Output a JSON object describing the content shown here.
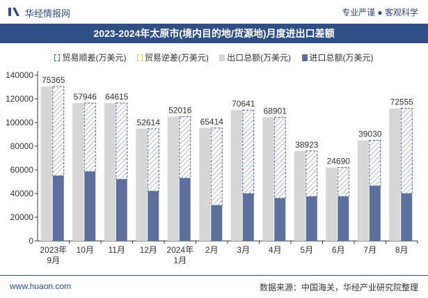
{
  "header": {
    "brand": "华经情报网",
    "slogan": "专业严谨 ● 客观科学"
  },
  "title": "2023-2024年太原市(境内目的地/货源地)月度进出口差额",
  "legend": [
    {
      "key": "surplus",
      "label": "贸易顺差(万美元)"
    },
    {
      "key": "deficit",
      "label": "贸易逆差(万美元)"
    },
    {
      "key": "export",
      "label": "出口总额(万美元)"
    },
    {
      "key": "import",
      "label": "进口总额(万美元)"
    }
  ],
  "colors": {
    "export": "#d6d6d6",
    "import": "#5d6f9c",
    "surplus_border": "#3d5c95",
    "surplus_hatch": "#bdbdbd",
    "deficit_border": "#e8c24a",
    "axis": "#333333",
    "title_bg": "#2f4f86"
  },
  "footer": {
    "website": "www.huaon.com",
    "source": "数据来源：中国海关，华经产业研究院整理"
  },
  "chart_data": {
    "type": "bar",
    "categories": [
      "2023年\n9月",
      "10月",
      "11月",
      "12月",
      "2024年\n1月",
      "2月",
      "3月",
      "4月",
      "5月",
      "6月",
      "7月",
      "8月"
    ],
    "ylim": [
      0,
      140000
    ],
    "yticks": [
      0,
      20000,
      40000,
      60000,
      80000,
      100000,
      120000,
      140000
    ],
    "grid": false,
    "legend_position": "top",
    "series": [
      {
        "name": "出口总额(万美元)",
        "key": "export",
        "values": [
          130500,
          116500,
          116500,
          94800,
          105000,
          95400,
          110500,
          104500,
          76000,
          62000,
          85000,
          112000
        ]
      },
      {
        "name": "进口总额(万美元)",
        "key": "import",
        "values": [
          55000,
          58500,
          52000,
          42000,
          53000,
          30000,
          40000,
          36000,
          37500,
          37500,
          46500,
          40000
        ]
      },
      {
        "name": "贸易顺差(万美元)",
        "key": "surplus",
        "values": [
          75365,
          57946,
          64615,
          52614,
          52016,
          65414,
          70641,
          68901,
          38923,
          24690,
          39030,
          72555
        ]
      }
    ],
    "data_labels": [
      "75365",
      "57946",
      "64615",
      "52614",
      "52016",
      "65414",
      "70641",
      "68901",
      "38923",
      "24690",
      "39030",
      "72555"
    ]
  }
}
